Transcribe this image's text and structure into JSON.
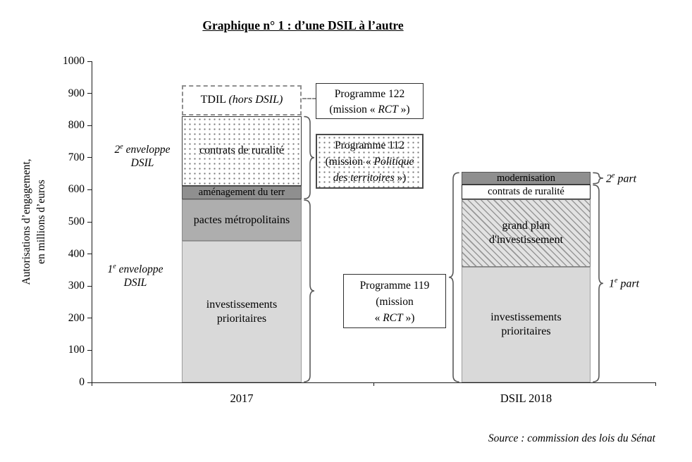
{
  "title": "Graphique n° 1 : d’une DSIL à l’autre",
  "source": "Source : commission des lois du Sénat",
  "y_axis_label_line1": "Autorisations d’engagement,",
  "y_axis_label_line2": "en millions d’euros",
  "chart_data": {
    "type": "bar",
    "subtype": "stacked",
    "title": "Graphique n° 1 : d’une DSIL à l’autre",
    "ylabel": "Autorisations d’engagement, en millions d’euros",
    "ylim": [
      0,
      1000
    ],
    "ytick_step": 100,
    "grid": false,
    "categories": [
      "2017",
      "DSIL 2018"
    ],
    "bars": [
      {
        "category": "2017",
        "segments": [
          {
            "label": "investissements prioritaires",
            "from": 0,
            "to": 440,
            "value": 440,
            "style": "light-gray"
          },
          {
            "label": "pactes métropolitains",
            "from": 440,
            "to": 570,
            "value": 130,
            "style": "medium-gray"
          },
          {
            "label": "aménagement du terr",
            "from": 570,
            "to": 612,
            "value": 42,
            "style": "dark-gray"
          },
          {
            "label": "contrats de ruralité",
            "from": 612,
            "to": 830,
            "value": 218,
            "style": "dotted"
          },
          {
            "label": "TDIL ",
            "label_italic": "(hors DSIL)",
            "from": 832,
            "to": 925,
            "value": 93,
            "style": "dashed-outline"
          }
        ]
      },
      {
        "category": "DSIL 2018",
        "segments": [
          {
            "label": "investissements prioritaires",
            "from": 0,
            "to": 360,
            "value": 360,
            "style": "light-gray"
          },
          {
            "label": "grand plan d'investissement",
            "from": 360,
            "to": 570,
            "value": 210,
            "style": "hatched"
          },
          {
            "label": "contrats de ruralité",
            "from": 570,
            "to": 617,
            "value": 47,
            "style": "white"
          },
          {
            "label": "modernisation",
            "from": 617,
            "to": 655,
            "value": 38,
            "style": "dark-gray"
          }
        ]
      }
    ],
    "braces": [
      {
        "bar": 0,
        "side": "right",
        "from": 570,
        "to": 830,
        "links_to": "Programme 112"
      },
      {
        "bar": 0,
        "side": "right",
        "from": 0,
        "to": 570,
        "links_to": "Programme 119"
      },
      {
        "bar": 1,
        "side": "left",
        "from": 0,
        "to": 655,
        "links_to": "Programme 119"
      },
      {
        "bar": 1,
        "side": "right",
        "from": 617,
        "to": 655,
        "links_to": "2e part"
      },
      {
        "bar": 1,
        "side": "right",
        "from": 0,
        "to": 617,
        "links_to": "1e part"
      }
    ]
  },
  "boxes": {
    "p122": {
      "l1": "Programme 122",
      "l2a": "(mission « ",
      "l2b": "RCT",
      "l2c": " »)"
    },
    "p112": {
      "l1": "Programme 112",
      "l2a": "(mission « ",
      "l2b": "Politique",
      "l3a": "des territoires",
      "l3b": " »)"
    },
    "p119": {
      "l1": "Programme 119",
      "l2": "(mission",
      "l3a": "« ",
      "l3b": "RCT",
      "l3c": " »)"
    }
  },
  "annotations": {
    "env2": {
      "num": "2",
      "sup": "e",
      "rest": " enveloppe",
      "line2": "DSIL"
    },
    "env1": {
      "num": "1",
      "sup": "e",
      "rest": " enveloppe",
      "line2": "DSIL"
    },
    "part2": {
      "num": "2",
      "sup": "e",
      "rest": " part"
    },
    "part1": {
      "num": "1",
      "sup": "e",
      "rest": " part"
    }
  },
  "colors": {
    "light_gray": "#d9d9d9",
    "medium_gray": "#aeaeae",
    "dark_gray": "#8f8f8f",
    "dot_pattern": "#777777",
    "hatch_pattern": "#989898",
    "axis": "#1a1a1a",
    "brace": "#595959"
  }
}
